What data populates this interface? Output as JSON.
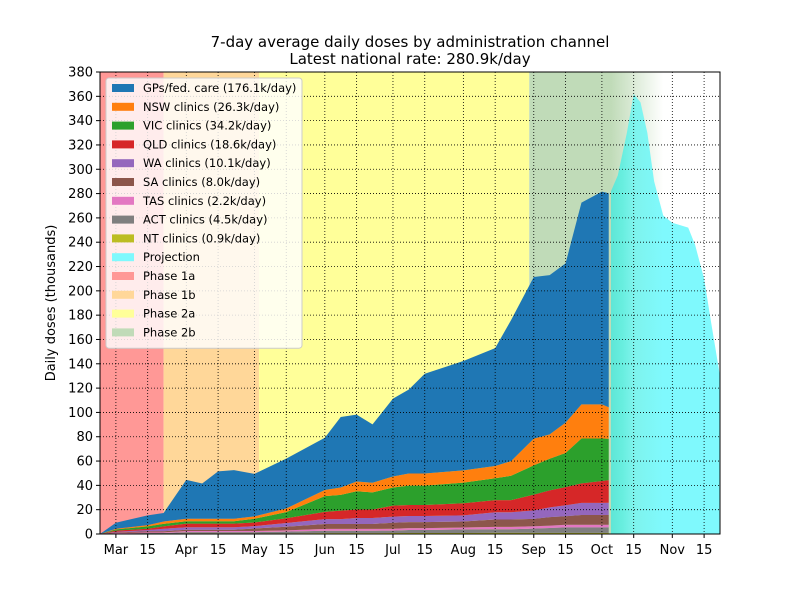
{
  "chart_data": {
    "type": "area",
    "title": "7-day average daily doses by administration channel",
    "subtitle": "Latest national rate: 280.9k/day",
    "xlabel": "",
    "ylabel": "Daily doses (thousands)",
    "ylim": [
      0,
      380
    ],
    "yticks": [
      0,
      20,
      40,
      60,
      80,
      100,
      120,
      140,
      160,
      180,
      200,
      220,
      240,
      260,
      280,
      300,
      320,
      340,
      360,
      380
    ],
    "xlim": [
      "2021-02-22",
      "2021-11-22"
    ],
    "xticks": [
      {
        "date": "2021-03-01",
        "label": "Mar"
      },
      {
        "date": "2021-03-15",
        "label": "15"
      },
      {
        "date": "2021-04-01",
        "label": "Apr"
      },
      {
        "date": "2021-04-15",
        "label": "15"
      },
      {
        "date": "2021-05-01",
        "label": "May"
      },
      {
        "date": "2021-05-15",
        "label": "15"
      },
      {
        "date": "2021-06-01",
        "label": "Jun"
      },
      {
        "date": "2021-06-15",
        "label": "15"
      },
      {
        "date": "2021-07-01",
        "label": "Jul"
      },
      {
        "date": "2021-07-15",
        "label": "15"
      },
      {
        "date": "2021-08-01",
        "label": "Aug"
      },
      {
        "date": "2021-08-15",
        "label": "15"
      },
      {
        "date": "2021-09-01",
        "label": "Sep"
      },
      {
        "date": "2021-09-15",
        "label": "15"
      },
      {
        "date": "2021-10-01",
        "label": "Oct"
      },
      {
        "date": "2021-10-15",
        "label": "15"
      },
      {
        "date": "2021-11-01",
        "label": "Nov"
      },
      {
        "date": "2021-11-15",
        "label": "15"
      }
    ],
    "grid": true,
    "legend_position": "top-left",
    "phases": [
      {
        "name": "Phase 1a",
        "start": "2021-02-22",
        "end": "2021-03-22",
        "color": "#ff9896"
      },
      {
        "name": "Phase 1b",
        "start": "2021-03-22",
        "end": "2021-05-03",
        "color": "#ffd799"
      },
      {
        "name": "Phase 2a",
        "start": "2021-05-03",
        "end": "2021-08-30",
        "color": "#ffff99"
      },
      {
        "name": "Phase 2b",
        "start": "2021-08-30",
        "end": "2021-10-28",
        "color": "#c0dbb8",
        "fade_start": "2021-10-05"
      }
    ],
    "dates": [
      "2021-02-22",
      "2021-03-01",
      "2021-03-15",
      "2021-03-22",
      "2021-04-01",
      "2021-04-08",
      "2021-04-15",
      "2021-04-22",
      "2021-05-01",
      "2021-05-15",
      "2021-06-01",
      "2021-06-08",
      "2021-06-15",
      "2021-06-22",
      "2021-07-01",
      "2021-07-08",
      "2021-07-15",
      "2021-08-01",
      "2021-08-15",
      "2021-08-22",
      "2021-09-01",
      "2021-09-08",
      "2021-09-15",
      "2021-09-22",
      "2021-10-01",
      "2021-10-04"
    ],
    "series": [
      {
        "name": "GPs/fed. care (176.1k/day)",
        "color": "#1f77b4",
        "values": [
          0,
          5,
          8,
          7,
          32,
          29,
          39,
          40,
          35,
          41,
          43,
          58,
          55,
          48,
          64,
          69,
          82,
          90,
          97,
          116,
          133,
          131,
          131,
          166,
          175,
          176
        ]
      },
      {
        "name": "NSW clinics (26.3k/day)",
        "color": "#ff7f0e",
        "values": [
          0,
          0.5,
          1,
          2,
          2,
          2,
          2,
          2,
          2,
          3,
          5,
          6,
          8,
          8,
          9,
          10,
          10,
          10,
          10,
          12,
          22,
          20,
          25,
          28,
          28,
          26
        ]
      },
      {
        "name": "VIC clinics (34.2k/day)",
        "color": "#2ca02c",
        "values": [
          0,
          1,
          2,
          2,
          2,
          2,
          2,
          2,
          3,
          5,
          13,
          13,
          15,
          14,
          15,
          16,
          16,
          17,
          18,
          20,
          24,
          26,
          28,
          37,
          35,
          34
        ]
      },
      {
        "name": "QLD clinics (18.6k/day)",
        "color": "#d62728",
        "values": [
          0,
          1,
          1,
          2,
          3,
          3,
          3,
          3,
          3,
          4,
          6,
          7,
          7,
          7,
          9,
          9,
          9,
          10,
          10,
          10,
          13,
          14,
          15,
          16,
          18,
          18.6
        ]
      },
      {
        "name": "WA clinics (10.1k/day)",
        "color": "#9467bd",
        "values": [
          0,
          0.5,
          1,
          2,
          2,
          2,
          2,
          2,
          2,
          3,
          4,
          4,
          5,
          5,
          5,
          5,
          5,
          5,
          6,
          6,
          7,
          8,
          9,
          10,
          10,
          10.1
        ]
      },
      {
        "name": "SA clinics (8.0k/day)",
        "color": "#8c564b",
        "values": [
          0,
          0.5,
          1,
          1,
          1,
          1,
          1,
          1,
          2,
          3,
          4,
          4,
          4,
          4,
          5,
          5,
          5,
          5,
          6,
          6,
          6,
          7,
          7,
          8,
          8,
          8
        ]
      },
      {
        "name": "TAS clinics (2.2k/day)",
        "color": "#e377c2",
        "values": [
          0,
          0.3,
          0.5,
          0.5,
          1,
          1,
          1,
          1,
          1,
          1,
          1.5,
          1.5,
          1.5,
          1.5,
          1.5,
          1.5,
          1.5,
          1.5,
          2,
          2,
          2,
          2,
          2.2,
          2.2,
          2.2,
          2.2
        ]
      },
      {
        "name": "ACT clinics (4.5k/day)",
        "color": "#7f7f7f",
        "values": [
          0,
          0.3,
          0.5,
          0.5,
          1,
          1,
          1,
          1,
          1,
          1.5,
          2,
          2,
          2,
          2,
          2,
          2.5,
          2.5,
          3,
          3,
          3,
          3.5,
          4,
          4.5,
          4.5,
          4.5,
          4.5
        ]
      },
      {
        "name": "NT clinics (0.9k/day)",
        "color": "#bcbd22",
        "values": [
          0,
          0.2,
          0.3,
          0.3,
          0.5,
          0.5,
          0.5,
          0.5,
          0.5,
          0.5,
          0.7,
          0.7,
          0.7,
          0.7,
          0.8,
          0.8,
          0.8,
          0.8,
          0.9,
          0.9,
          0.9,
          0.9,
          0.9,
          0.9,
          0.9,
          0.9
        ]
      }
    ],
    "projection": {
      "name": "Projection",
      "color": "#7ff9fd",
      "dates": [
        "2021-10-05",
        "2021-10-08",
        "2021-10-12",
        "2021-10-15",
        "2021-10-18",
        "2021-10-21",
        "2021-10-24",
        "2021-10-28",
        "2021-11-01",
        "2021-11-08",
        "2021-11-11",
        "2021-11-15",
        "2021-11-18",
        "2021-11-22"
      ],
      "values": [
        282,
        295,
        330,
        362,
        355,
        330,
        290,
        262,
        256,
        252,
        238,
        210,
        175,
        130
      ],
      "fade_start": "2021-10-15",
      "fade_end": "2021-10-28"
    }
  }
}
